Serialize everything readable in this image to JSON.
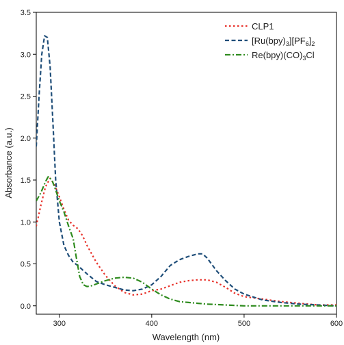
{
  "chart_data": {
    "type": "line",
    "xlabel": "Wavelength (nm)",
    "ylabel": "Absorbance (a.u.)",
    "xlim": [
      275,
      600
    ],
    "ylim": [
      -0.1,
      3.5
    ],
    "xticks": [
      300,
      400,
      500,
      600
    ],
    "xtick_labels": [
      "300",
      "400",
      "500",
      "600"
    ],
    "yticks": [
      0.0,
      0.5,
      1.0,
      1.5,
      2.0,
      2.5,
      3.0,
      3.5
    ],
    "ytick_labels": [
      "0.0",
      "0.5",
      "1.0",
      "1.5",
      "2.0",
      "2.5",
      "3.0",
      "3.5"
    ],
    "legend_position": "top-right",
    "grid": false,
    "series": [
      {
        "name": "CLP1",
        "legend_parts": [
          {
            "t": "CLP1"
          }
        ],
        "color": "#e8322b",
        "dash": "dotted",
        "points": [
          [
            275,
            0.95
          ],
          [
            280,
            1.2
          ],
          [
            285,
            1.42
          ],
          [
            290,
            1.52
          ],
          [
            295,
            1.44
          ],
          [
            300,
            1.3
          ],
          [
            305,
            1.15
          ],
          [
            310,
            1.02
          ],
          [
            315,
            0.96
          ],
          [
            320,
            0.92
          ],
          [
            325,
            0.84
          ],
          [
            330,
            0.72
          ],
          [
            340,
            0.52
          ],
          [
            350,
            0.36
          ],
          [
            360,
            0.24
          ],
          [
            370,
            0.16
          ],
          [
            380,
            0.13
          ],
          [
            390,
            0.14
          ],
          [
            400,
            0.18
          ],
          [
            410,
            0.2
          ],
          [
            420,
            0.24
          ],
          [
            430,
            0.28
          ],
          [
            440,
            0.3
          ],
          [
            450,
            0.31
          ],
          [
            460,
            0.31
          ],
          [
            470,
            0.28
          ],
          [
            480,
            0.22
          ],
          [
            490,
            0.15
          ],
          [
            500,
            0.11
          ],
          [
            520,
            0.08
          ],
          [
            540,
            0.05
          ],
          [
            560,
            0.03
          ],
          [
            580,
            0.01
          ],
          [
            600,
            0.01
          ]
        ]
      },
      {
        "name": "[Ru(bpy)3][PF6]2",
        "legend_parts": [
          {
            "t": "[Ru(bpy)"
          },
          {
            "t": "3",
            "sub": true
          },
          {
            "t": "][PF"
          },
          {
            "t": "6",
            "sub": true
          },
          {
            "t": "]"
          },
          {
            "t": "2",
            "sub": true
          }
        ],
        "color": "#1f4e79",
        "dash": "dashed",
        "points": [
          [
            275,
            1.9
          ],
          [
            278,
            2.5
          ],
          [
            281,
            3.0
          ],
          [
            284,
            3.22
          ],
          [
            287,
            3.2
          ],
          [
            290,
            2.85
          ],
          [
            293,
            2.2
          ],
          [
            296,
            1.5
          ],
          [
            300,
            1.0
          ],
          [
            305,
            0.72
          ],
          [
            310,
            0.6
          ],
          [
            315,
            0.52
          ],
          [
            320,
            0.48
          ],
          [
            325,
            0.43
          ],
          [
            330,
            0.38
          ],
          [
            340,
            0.29
          ],
          [
            350,
            0.25
          ],
          [
            360,
            0.22
          ],
          [
            370,
            0.19
          ],
          [
            380,
            0.18
          ],
          [
            390,
            0.2
          ],
          [
            400,
            0.25
          ],
          [
            410,
            0.35
          ],
          [
            420,
            0.48
          ],
          [
            430,
            0.55
          ],
          [
            440,
            0.59
          ],
          [
            450,
            0.62
          ],
          [
            455,
            0.62
          ],
          [
            460,
            0.57
          ],
          [
            470,
            0.42
          ],
          [
            480,
            0.3
          ],
          [
            490,
            0.2
          ],
          [
            500,
            0.14
          ],
          [
            520,
            0.07
          ],
          [
            540,
            0.04
          ],
          [
            560,
            0.02
          ],
          [
            580,
            0.01
          ],
          [
            600,
            0.0
          ]
        ]
      },
      {
        "name": "Re(bpy)(CO)3Cl",
        "legend_parts": [
          {
            "t": "Re(bpy)(CO)"
          },
          {
            "t": "3",
            "sub": true
          },
          {
            "t": "Cl"
          }
        ],
        "color": "#2e8b1e",
        "dash": "dashdot",
        "points": [
          [
            275,
            1.25
          ],
          [
            280,
            1.35
          ],
          [
            285,
            1.48
          ],
          [
            288,
            1.54
          ],
          [
            292,
            1.5
          ],
          [
            296,
            1.38
          ],
          [
            300,
            1.25
          ],
          [
            305,
            1.12
          ],
          [
            310,
            0.95
          ],
          [
            315,
            0.8
          ],
          [
            318,
            0.6
          ],
          [
            322,
            0.35
          ],
          [
            326,
            0.25
          ],
          [
            330,
            0.23
          ],
          [
            335,
            0.24
          ],
          [
            340,
            0.26
          ],
          [
            350,
            0.3
          ],
          [
            360,
            0.33
          ],
          [
            370,
            0.34
          ],
          [
            380,
            0.33
          ],
          [
            390,
            0.28
          ],
          [
            400,
            0.2
          ],
          [
            410,
            0.13
          ],
          [
            420,
            0.08
          ],
          [
            430,
            0.05
          ],
          [
            440,
            0.04
          ],
          [
            450,
            0.03
          ],
          [
            460,
            0.02
          ],
          [
            480,
            0.01
          ],
          [
            500,
            0.0
          ],
          [
            520,
            0.0
          ],
          [
            560,
            0.0
          ],
          [
            600,
            0.0
          ]
        ]
      }
    ]
  }
}
